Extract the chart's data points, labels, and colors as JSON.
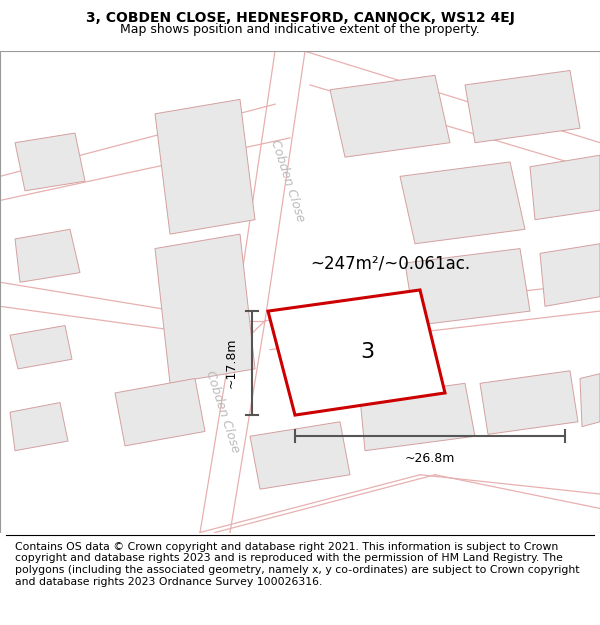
{
  "title_line1": "3, COBDEN CLOSE, HEDNESFORD, CANNOCK, WS12 4EJ",
  "title_line2": "Map shows position and indicative extent of the property.",
  "footer_text": "Contains OS data © Crown copyright and database right 2021. This information is subject to Crown copyright and database rights 2023 and is reproduced with the permission of HM Land Registry. The polygons (including the associated geometry, namely x, y co-ordinates) are subject to Crown copyright and database rights 2023 Ordnance Survey 100026316.",
  "area_label": "~247m²/~0.061ac.",
  "plot_number": "3",
  "dim_width": "~26.8m",
  "dim_height": "~17.8m",
  "street_label_top": "Cobden Close",
  "street_label_left": "Cobden Close",
  "map_bg_color": "#ffffff",
  "plot_fill_color": "#ffffff",
  "plot_edge_color": "#cc0000",
  "building_fill_color": "#e8e8e8",
  "building_edge_color": "#d4a0a0",
  "road_line_color": "#e8b0b0",
  "dim_line_color": "#555555",
  "title_fontsize": 10,
  "subtitle_fontsize": 9,
  "footer_fontsize": 7.8,
  "street_label_color": "#bbbbbb"
}
